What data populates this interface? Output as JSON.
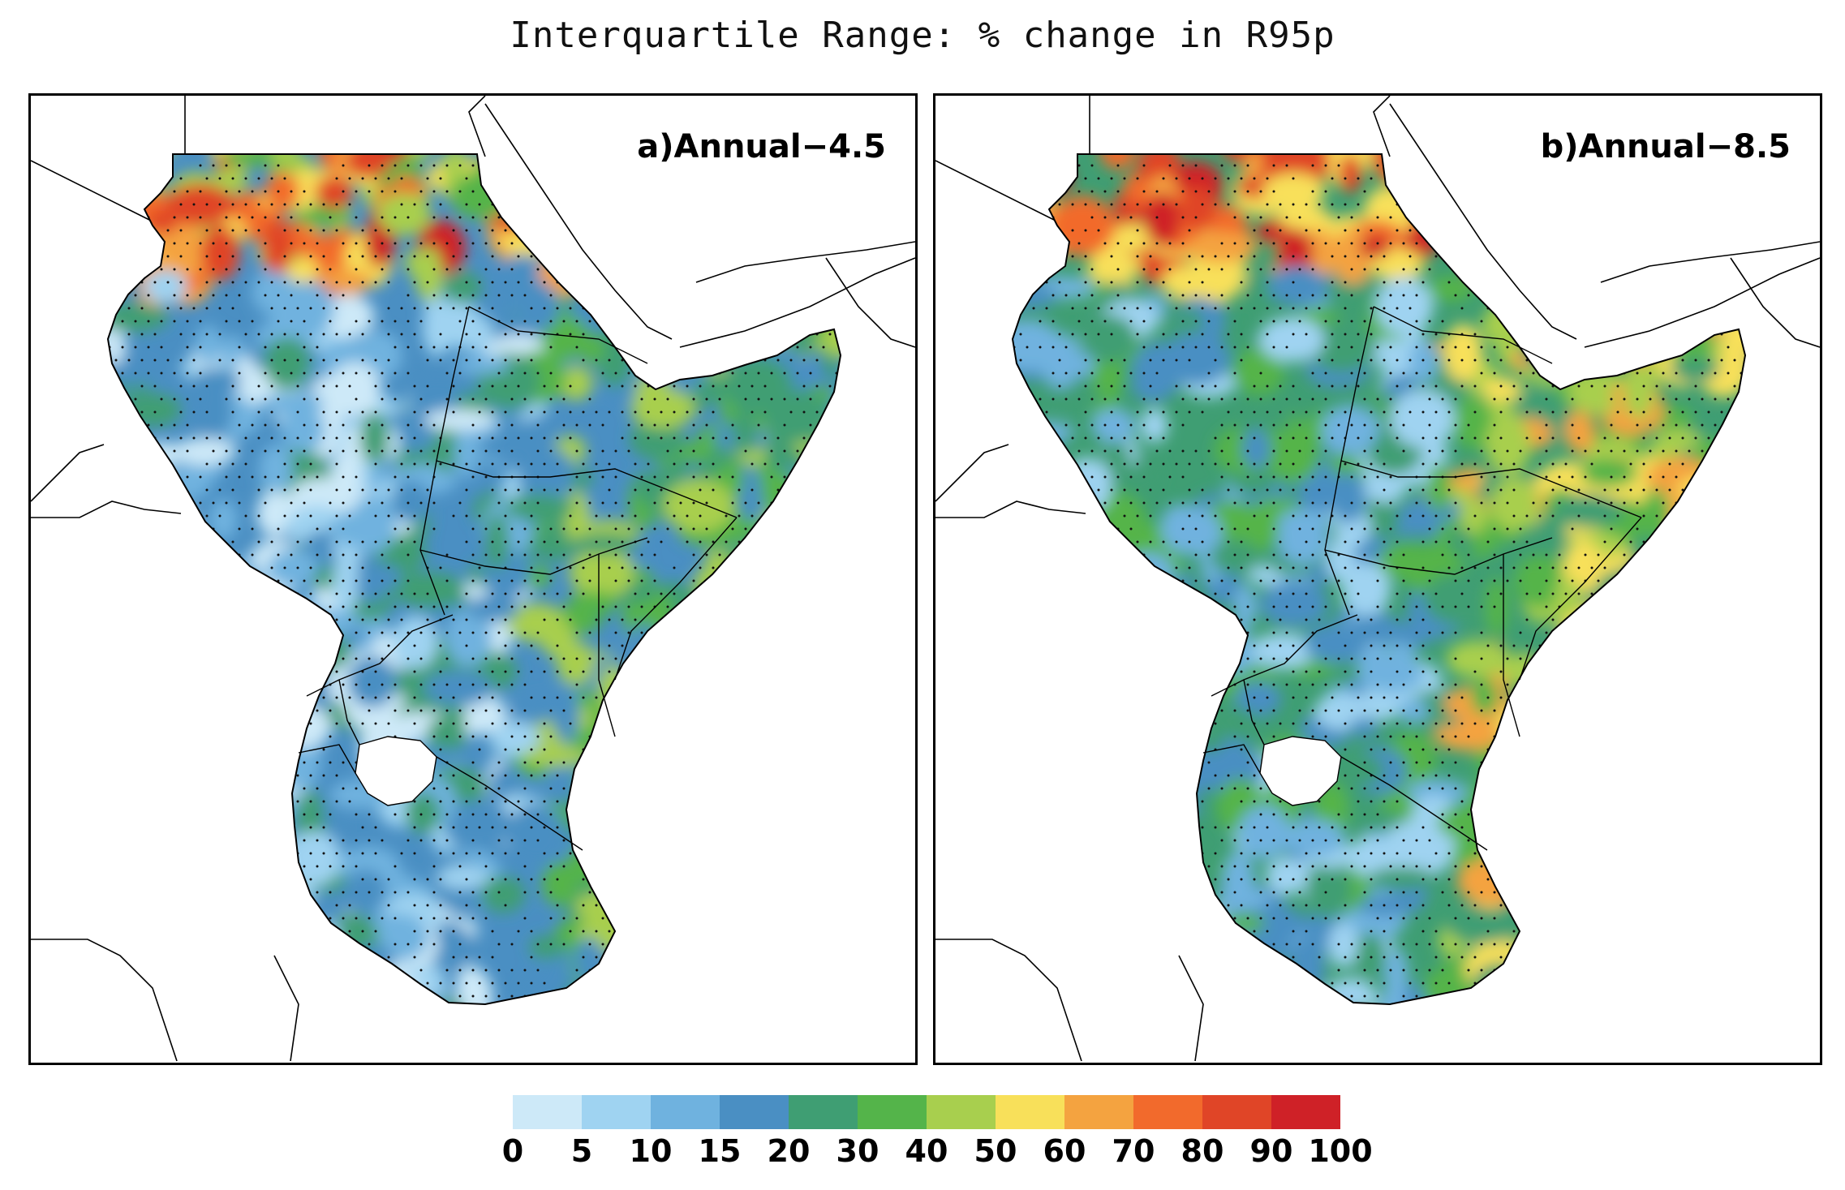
{
  "title": "Interquartile Range: % change in R95p",
  "panels": [
    {
      "id": "a",
      "label": "a)Annual−4.5",
      "scenario": "rcp45"
    },
    {
      "id": "b",
      "label": "b)Annual−8.5",
      "scenario": "rcp85"
    }
  ],
  "colorbar": {
    "ticks": [
      "0",
      "5",
      "10",
      "15",
      "20",
      "30",
      "40",
      "50",
      "60",
      "70",
      "80",
      "90",
      "100"
    ],
    "colors": [
      "#cde9f8",
      "#9fd3f1",
      "#6fb2df",
      "#4a8fc3",
      "#3f9e73",
      "#54b44a",
      "#a8cf4e",
      "#f8e05a",
      "#f4a340",
      "#f26a2c",
      "#e04527",
      "#cf2127"
    ]
  }
}
